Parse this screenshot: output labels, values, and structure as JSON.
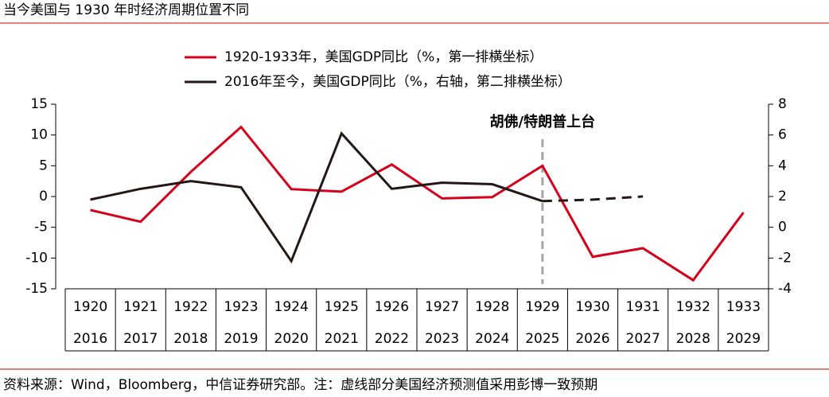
{
  "chart_data": {
    "type": "line",
    "title": "当今美国与 1930 年时经济周期位置不同",
    "footnote": "资料来源：Wind，Bloomberg，中信证券研究部。注：虚线部分美国经济预测值采用彭博一致预期",
    "categories": [
      "1920",
      "1921",
      "1922",
      "1923",
      "1924",
      "1925",
      "1926",
      "1927",
      "1928",
      "1929",
      "1930",
      "1931",
      "1932",
      "1933"
    ],
    "categories2": [
      "2016",
      "2017",
      "2018",
      "2019",
      "2020",
      "2021",
      "2022",
      "2023",
      "2024",
      "2025",
      "2026",
      "2027",
      "2028",
      "2029"
    ],
    "series": [
      {
        "name": "1920-1933年，美国GDP同比（%，第一排横坐标）",
        "color": "#d7001a",
        "axis": "y",
        "values": [
          -2.2,
          -4.1,
          4.0,
          11.3,
          1.2,
          0.8,
          5.2,
          -0.3,
          -0.1,
          5.0,
          -9.8,
          -8.4,
          -13.6,
          -2.6
        ]
      },
      {
        "name": "2016年至今，美国GDP同比（%，右轴，第二排横坐标）",
        "color": "#231815",
        "axis": "y2",
        "dashed_from_index": 9,
        "values": [
          1.8,
          2.5,
          3.0,
          2.6,
          -2.2,
          6.1,
          2.5,
          2.9,
          2.8,
          1.7,
          1.8,
          2.0,
          null,
          null
        ]
      }
    ],
    "ylim": [
      -15,
      15
    ],
    "yticks": [
      -15,
      -10,
      -5,
      0,
      5,
      10,
      15
    ],
    "y2lim": [
      -4,
      8
    ],
    "y2ticks": [
      -4,
      -2,
      0,
      2,
      4,
      6,
      8
    ],
    "annotation": {
      "text": "胡佛/特朗普上台",
      "x": "1929",
      "color": "#d7001a"
    }
  }
}
